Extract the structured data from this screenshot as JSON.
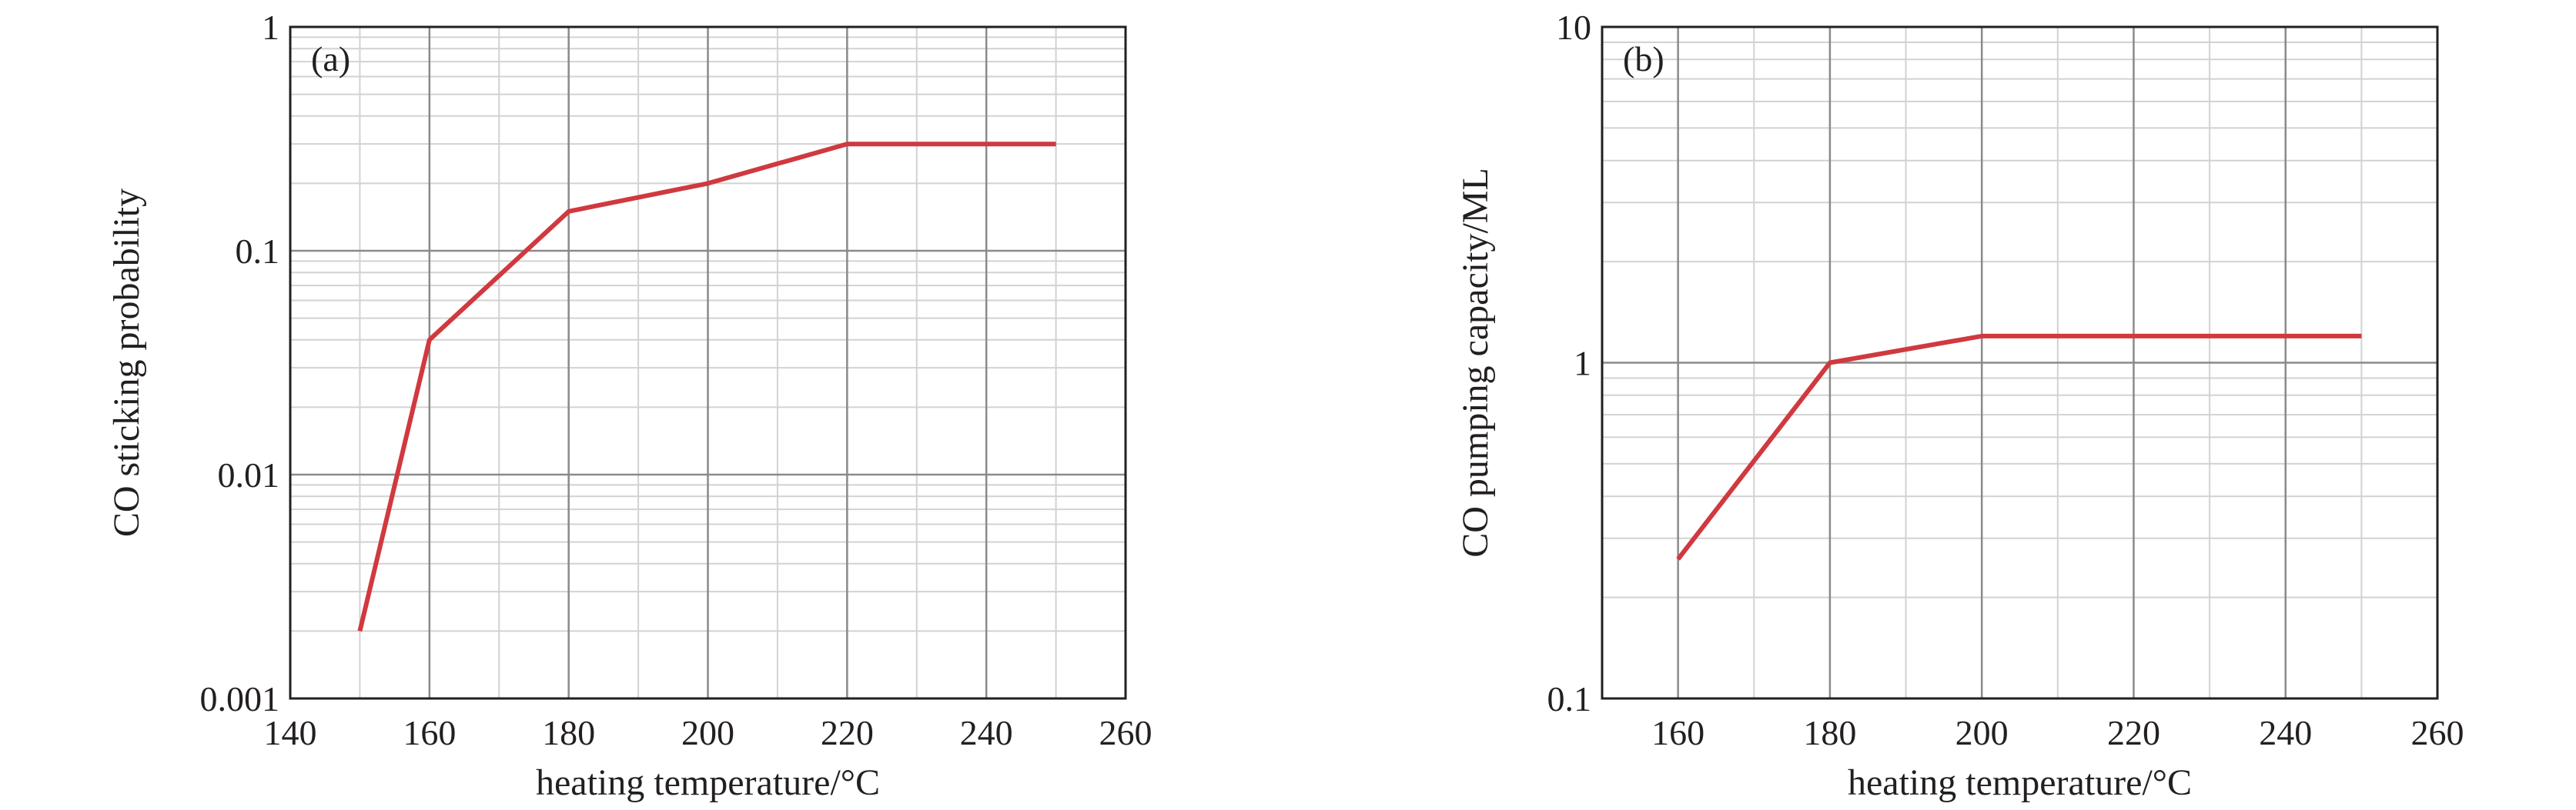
{
  "chart_data": [
    {
      "panel": "(a)",
      "type": "line",
      "xlabel": "heating temperature/°C",
      "ylabel": "CO sticking probability",
      "xlim": [
        140,
        260
      ],
      "xticks": [
        140,
        160,
        180,
        200,
        220,
        240,
        260
      ],
      "x_tick_labels": [
        "140",
        "160",
        "180",
        "200",
        "220",
        "240",
        "260"
      ],
      "yscale": "log",
      "ylim": [
        0.001,
        1
      ],
      "yticks": [
        0.001,
        0.01,
        0.1,
        1
      ],
      "y_tick_labels": [
        "0.001",
        "0.01",
        "0.1",
        "1"
      ],
      "grid": true,
      "series": [
        {
          "color": "#d0393f",
          "x": [
            150,
            160,
            180,
            200,
            220,
            250
          ],
          "y": [
            0.002,
            0.04,
            0.15,
            0.2,
            0.3,
            0.3
          ]
        }
      ]
    },
    {
      "panel": "(b)",
      "type": "line",
      "xlabel": "heating temperature/°C",
      "ylabel": "CO pumping capacity/ML",
      "xlim": [
        150,
        260
      ],
      "xticks": [
        160,
        180,
        200,
        220,
        240,
        260
      ],
      "x_tick_labels": [
        "160",
        "180",
        "200",
        "220",
        "240",
        "260"
      ],
      "yscale": "log",
      "ylim": [
        0.1,
        10
      ],
      "yticks": [
        0.1,
        1,
        10
      ],
      "y_tick_labels": [
        "0.1",
        "1",
        "10"
      ],
      "grid": true,
      "series": [
        {
          "color": "#d0393f",
          "x": [
            160,
            180,
            200,
            250
          ],
          "y": [
            0.26,
            1.0,
            1.2,
            1.2
          ]
        }
      ]
    }
  ]
}
